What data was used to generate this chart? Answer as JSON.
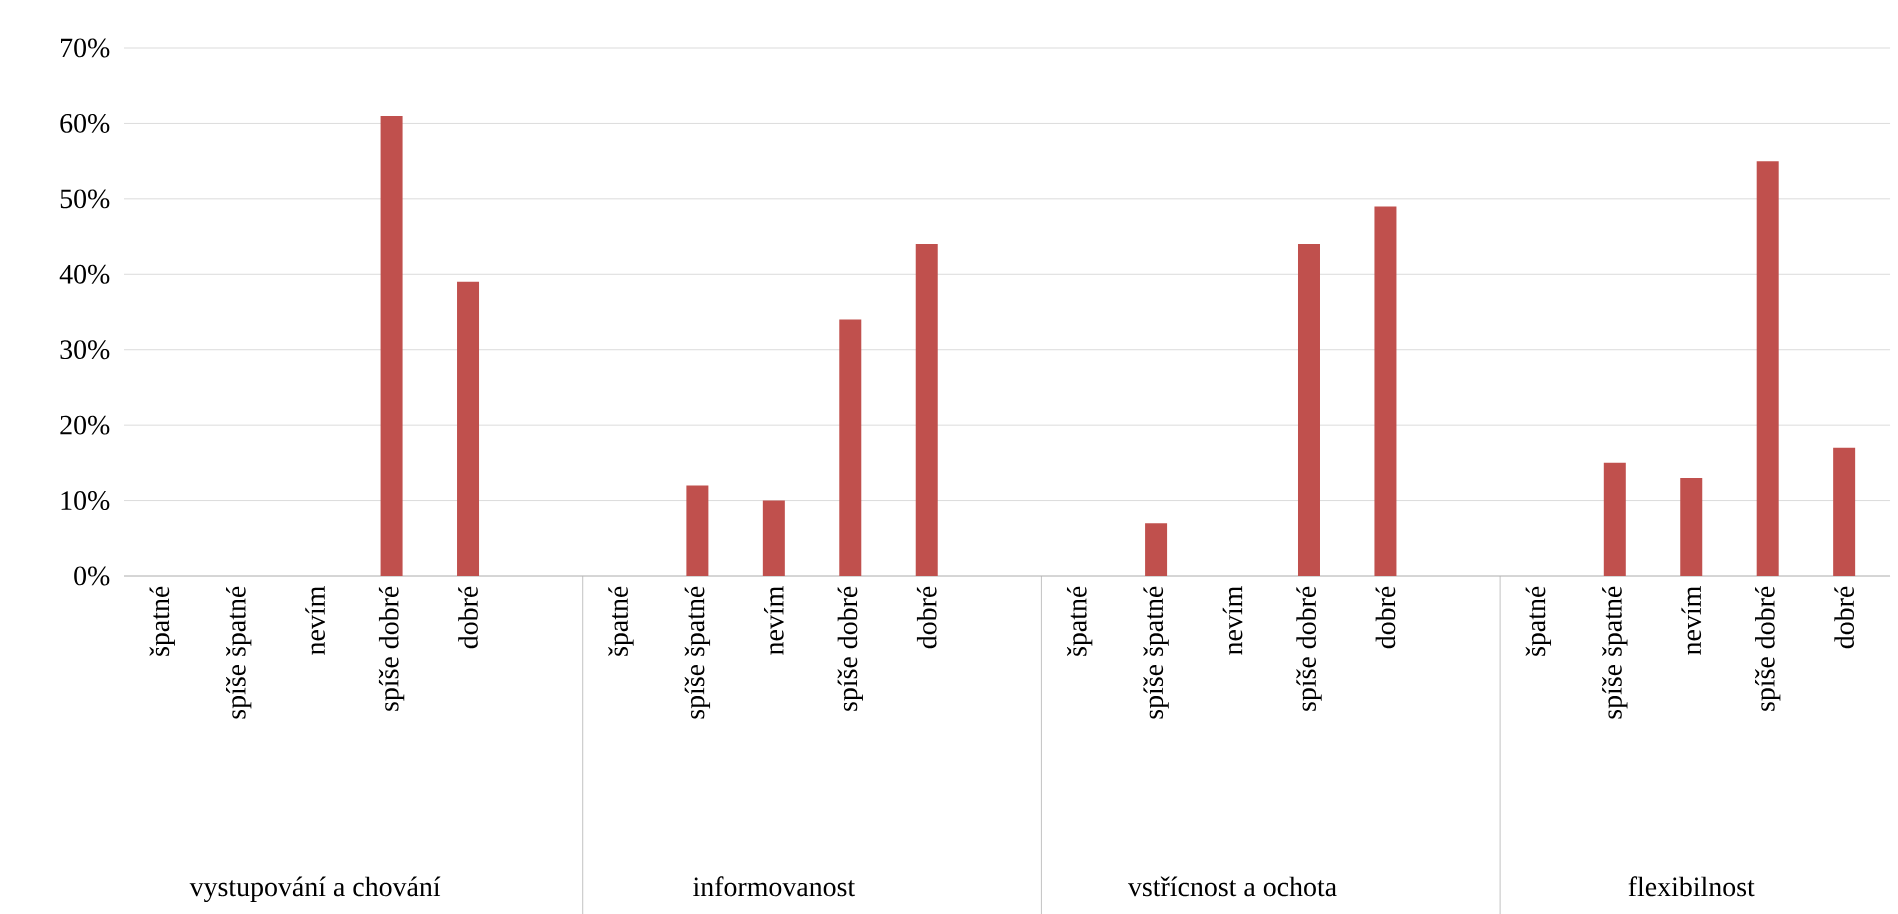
{
  "chart_data": {
    "type": "bar",
    "categories": [
      "špatné",
      "spíše špatné",
      "nevím",
      "spíše dobré",
      "dobré",
      "špatné",
      "spíše špatné",
      "nevím",
      "spíše dobré",
      "dobré",
      "špatné",
      "spíše špatné",
      "nevím",
      "spíše dobré",
      "dobré",
      "špatné",
      "spíše špatné",
      "nevím",
      "spíše dobré",
      "dobré"
    ],
    "values": [
      0,
      0,
      0,
      61,
      39,
      0,
      12,
      10,
      34,
      44,
      0,
      7,
      0,
      44,
      49,
      0,
      15,
      13,
      55,
      17
    ],
    "color": "#c0504d",
    "ylim": [
      0,
      70
    ],
    "yticks": [
      {
        "value": 0,
        "label": "0%"
      },
      {
        "value": 10,
        "label": "10%"
      },
      {
        "value": 20,
        "label": "20%"
      },
      {
        "value": 30,
        "label": "30%"
      },
      {
        "value": 40,
        "label": "40%"
      },
      {
        "value": 50,
        "label": "50%"
      },
      {
        "value": 60,
        "label": "60%"
      },
      {
        "value": 70,
        "label": "70%"
      }
    ],
    "grid": "y",
    "annotations": [
      "vystupování a chování",
      "informovanost",
      "vstřícnost a ochota",
      "flexibilnost"
    ]
  }
}
